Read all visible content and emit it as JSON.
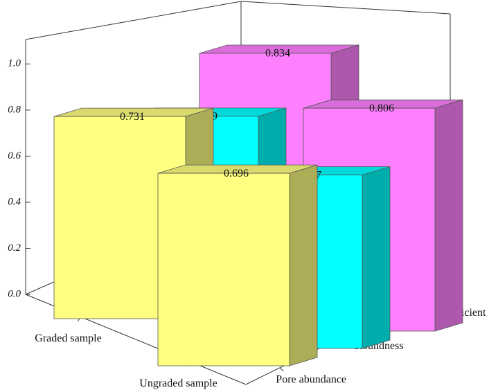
{
  "chart_data": {
    "type": "bar3d",
    "categories": [
      "Graded sample",
      "Ungraded sample"
    ],
    "series": [
      {
        "name": "Pore abundance",
        "color": "#ffff80",
        "values": [
          0.731,
          0.696
        ]
      },
      {
        "name": "Roundness",
        "color": "#00ffff",
        "values": [
          0.669,
          0.627
        ]
      },
      {
        "name": "Shape coefficient",
        "color": "#ff80ff",
        "values": [
          0.834,
          0.806
        ]
      }
    ],
    "ylim": [
      0,
      1.1
    ],
    "yticks": [
      {
        "value": 0,
        "label": "0.0"
      },
      0.2,
      0.4,
      0.6,
      0.8,
      {
        "value": 1,
        "label": "1.0"
      }
    ]
  }
}
